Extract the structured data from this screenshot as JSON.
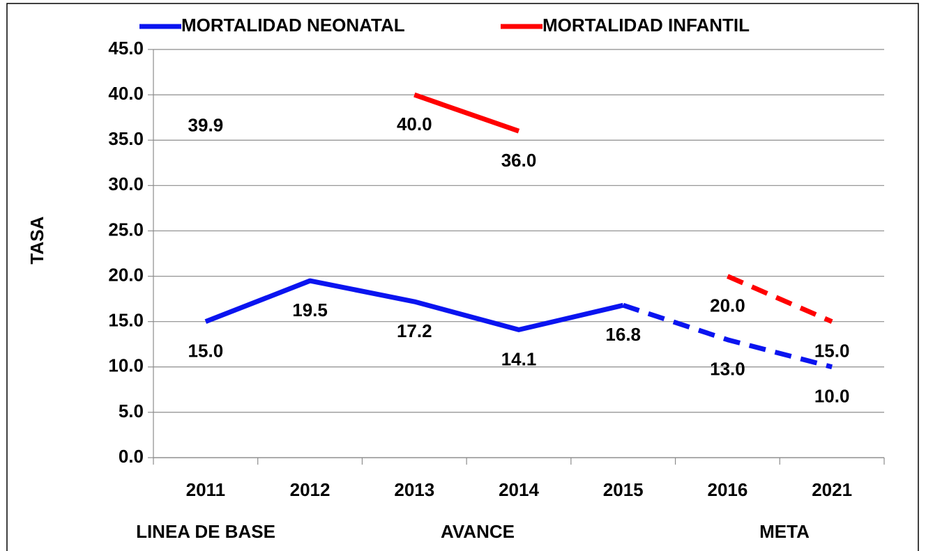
{
  "chart_data": {
    "type": "line",
    "categories": [
      "2011",
      "2012",
      "2013",
      "2014",
      "2015",
      "2016",
      "2021"
    ],
    "groups": [
      "LINEA DE BASE",
      "AVANCE",
      "META"
    ],
    "ylabel": "TASA",
    "series": [
      {
        "name": "MORTALIDAD NEONATAL",
        "color": "#0a14f0",
        "dash_from": "2015",
        "values": [
          15.0,
          19.5,
          17.2,
          14.1,
          16.8,
          13.0,
          10.0
        ],
        "value_labels": [
          "15.0",
          "19.5",
          "17.2",
          "14.1",
          "16.8",
          "13.0",
          "10.0"
        ]
      },
      {
        "name": "MORTALIDAD INFANTIL",
        "color": "#ff0000",
        "dash_from": "2016",
        "values": [
          39.9,
          null,
          40.0,
          36.0,
          null,
          20.0,
          15.0
        ],
        "value_labels": [
          "39.9",
          null,
          "40.0",
          "36.0",
          null,
          "20.0",
          "15.0"
        ]
      }
    ],
    "ylim": [
      0,
      45
    ],
    "yticks": [
      {
        "value": 0,
        "label": "0.0"
      },
      {
        "value": 5,
        "label": "5.0"
      },
      {
        "value": 10,
        "label": "10.0"
      },
      {
        "value": 15,
        "label": "15.0"
      },
      {
        "value": 20,
        "label": "20.0"
      },
      {
        "value": 25,
        "label": "25.0"
      },
      {
        "value": 30,
        "label": "30.0"
      },
      {
        "value": 35,
        "label": "35.0"
      },
      {
        "value": 40,
        "label": "40.0"
      },
      {
        "value": 45,
        "label": "45.0"
      }
    ],
    "grid": true
  }
}
